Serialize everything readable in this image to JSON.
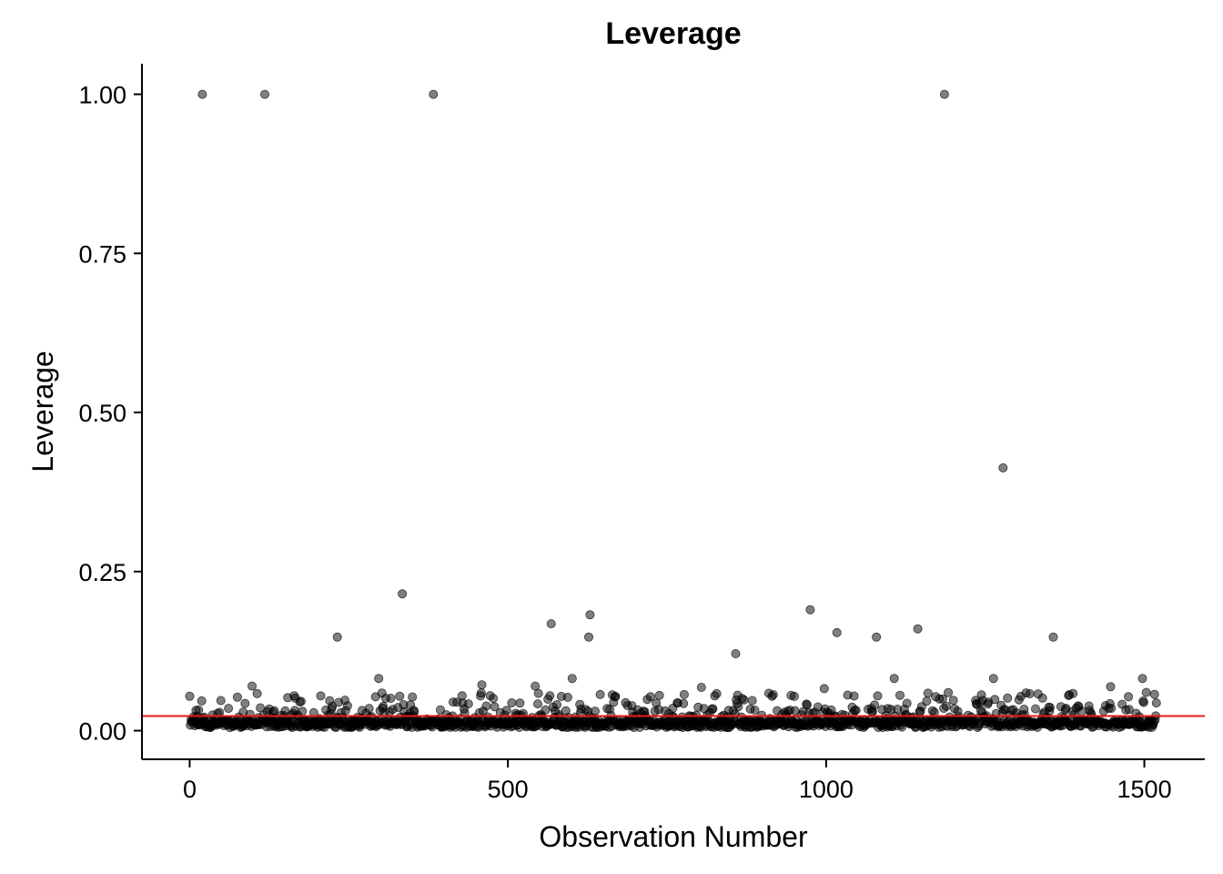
{
  "chart_data": {
    "type": "scatter",
    "title": "Leverage",
    "xlabel": "Observation Number",
    "ylabel": "Leverage",
    "xlim": [
      -75,
      1595
    ],
    "ylim": [
      -0.045,
      1.048
    ],
    "x_ticks": [
      0,
      500,
      1000,
      1500
    ],
    "x_tick_labels": [
      "0",
      "500",
      "1000",
      "1500"
    ],
    "y_ticks": [
      0,
      0.25,
      0.5,
      0.75,
      1.0
    ],
    "y_tick_labels": [
      "0.00",
      "0.25",
      "0.50",
      "0.75",
      "1.00"
    ],
    "grid": false,
    "legend": "none",
    "point_color": "#000000",
    "point_opacity": 0.5,
    "reference_line": {
      "y": 0.023,
      "color": "#e41a1c"
    },
    "n_observations": 1520,
    "notable_points": [
      {
        "x": 20,
        "y": 1.0
      },
      {
        "x": 118,
        "y": 1.0
      },
      {
        "x": 383,
        "y": 1.0
      },
      {
        "x": 1186,
        "y": 1.0
      },
      {
        "x": 1278,
        "y": 0.413
      },
      {
        "x": 334,
        "y": 0.215
      },
      {
        "x": 975,
        "y": 0.19
      },
      {
        "x": 629,
        "y": 0.182
      },
      {
        "x": 568,
        "y": 0.168
      },
      {
        "x": 1144,
        "y": 0.16
      },
      {
        "x": 1017,
        "y": 0.154
      },
      {
        "x": 232,
        "y": 0.147
      },
      {
        "x": 627,
        "y": 0.147
      },
      {
        "x": 1079,
        "y": 0.147
      },
      {
        "x": 1357,
        "y": 0.147
      },
      {
        "x": 858,
        "y": 0.121
      },
      {
        "x": 297,
        "y": 0.082
      },
      {
        "x": 601,
        "y": 0.082
      },
      {
        "x": 1107,
        "y": 0.082
      },
      {
        "x": 1263,
        "y": 0.082
      },
      {
        "x": 1497,
        "y": 0.082
      },
      {
        "x": 98,
        "y": 0.07
      },
      {
        "x": 459,
        "y": 0.072
      },
      {
        "x": 543,
        "y": 0.07
      },
      {
        "x": 804,
        "y": 0.068
      },
      {
        "x": 997,
        "y": 0.066
      },
      {
        "x": 1447,
        "y": 0.069
      },
      {
        "x": 0,
        "y": 0.054
      },
      {
        "x": 1516,
        "y": 0.057
      },
      {
        "x": 1503,
        "y": 0.06
      }
    ],
    "bulk_range": {
      "y_min": 0.004,
      "y_max": 0.06
    }
  }
}
